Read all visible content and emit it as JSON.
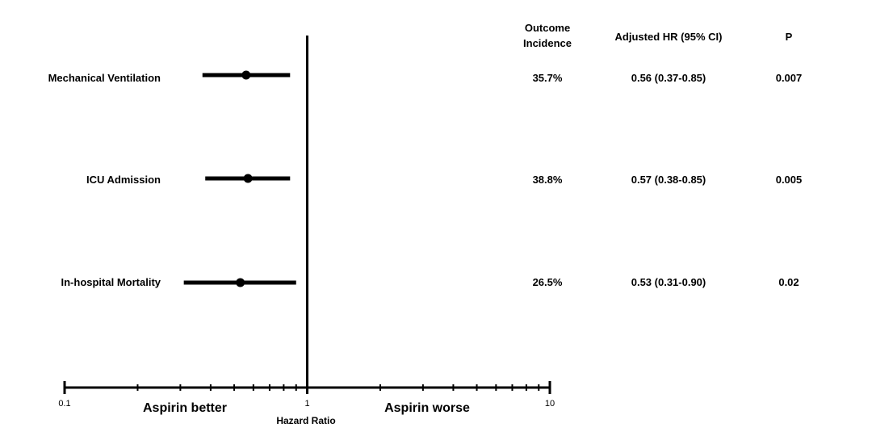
{
  "chart_data": {
    "type": "forest",
    "title": "",
    "xlabel": "Hazard Ratio",
    "x_scale": "log",
    "xlim": [
      0.1,
      10
    ],
    "reference_line": 1,
    "x_major_ticks": [
      {
        "value": 0.1,
        "label": "0.1"
      },
      {
        "value": 1,
        "label": "1"
      },
      {
        "value": 10,
        "label": "10"
      }
    ],
    "x_minor_ticks": [
      0.2,
      0.3,
      0.4,
      0.5,
      0.6,
      0.7,
      0.8,
      0.9,
      2,
      3,
      4,
      5,
      6,
      7,
      8,
      9
    ],
    "direction_labels": {
      "left": "Aspirin better",
      "right": "Aspirin worse"
    },
    "column_headers": {
      "incidence": [
        "Outcome",
        "Incidence"
      ],
      "hr": "Adjusted HR (95% CI)",
      "p": "P"
    },
    "rows": [
      {
        "label": "Mechanical Ventilation",
        "hr": 0.56,
        "ci_low": 0.37,
        "ci_high": 0.85,
        "incidence": "35.7%",
        "hr_text": "0.56 (0.37-0.85)",
        "p": "0.007"
      },
      {
        "label": "ICU Admission",
        "hr": 0.57,
        "ci_low": 0.38,
        "ci_high": 0.85,
        "incidence": "38.8%",
        "hr_text": "0.57 (0.38-0.85)",
        "p": "0.005"
      },
      {
        "label": "In-hospital Mortality",
        "hr": 0.53,
        "ci_low": 0.31,
        "ci_high": 0.9,
        "incidence": "26.5%",
        "hr_text": "0.53 (0.31-0.90)",
        "p": "0.02"
      }
    ],
    "grid": false,
    "legend": "none"
  }
}
